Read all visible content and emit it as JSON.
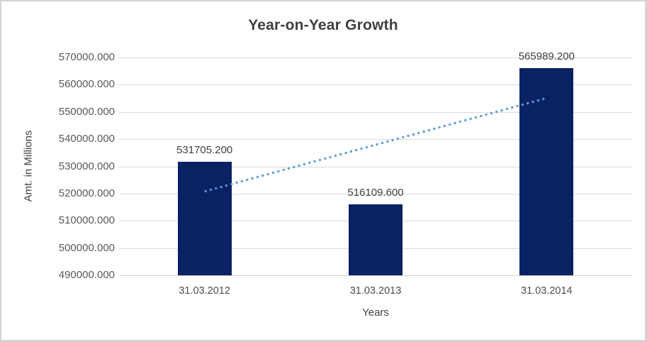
{
  "frame": {
    "background": "#ffffff",
    "border_color": "#d4d4d4"
  },
  "chart_data": {
    "type": "bar",
    "title": "Year-on-Year Growth",
    "xlabel": "Years",
    "ylabel": "Amt. in Millions",
    "categories": [
      "31.03.2012",
      "31.03.2013",
      "31.03.2014"
    ],
    "values": [
      531705.2,
      516109.6,
      565989.2
    ],
    "data_labels": [
      "531705.200",
      "516109.600",
      "565989.200"
    ],
    "ylim": [
      490000,
      570000
    ],
    "ytick_step": 10000,
    "ytick_labels": [
      "570000.000",
      "560000.000",
      "550000.000",
      "540000.000",
      "530000.000",
      "520000.000",
      "510000.000",
      "500000.000",
      "490000.000"
    ],
    "grid": true,
    "legend": "none",
    "bar_color": "#0a2263",
    "gridline_color": "#d9d9d9",
    "trendline": {
      "type": "linear",
      "style": "dotted",
      "color": "#5b9bd5",
      "start_value": 520792.7,
      "end_value": 555076.7
    }
  }
}
